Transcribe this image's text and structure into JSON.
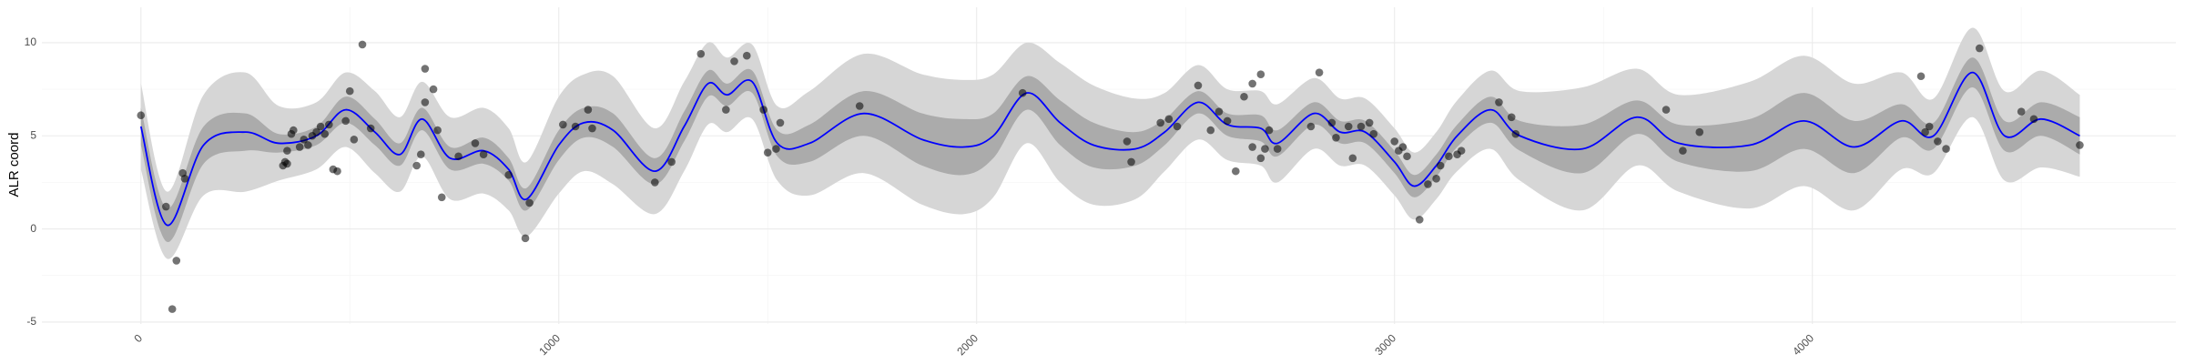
{
  "chart_data": {
    "type": "line",
    "ylabel": "ALR coord",
    "xlim": [
      -237,
      4870
    ],
    "ylim": [
      -5.1,
      11.9
    ],
    "xticks": [
      0,
      1000,
      2000,
      3000,
      4000
    ],
    "yticks": [
      -5,
      0,
      5,
      10
    ],
    "xminor": [
      500,
      1500,
      2500,
      3500,
      4500
    ],
    "yminor": [
      -2.5,
      2.5,
      7.5
    ],
    "grid": true,
    "x": [
      0,
      63,
      150,
      250,
      330,
      420,
      490,
      560,
      620,
      673,
      740,
      820,
      880,
      923,
      1000,
      1060,
      1130,
      1230,
      1300,
      1357,
      1403,
      1463,
      1523,
      1600,
      1730,
      1870,
      1970,
      2040,
      2120,
      2200,
      2280,
      2380,
      2450,
      2530,
      2600,
      2680,
      2720,
      2807,
      2870,
      2930,
      3000,
      3047,
      3100,
      3150,
      3230,
      3300,
      3450,
      3580,
      3680,
      3850,
      3980,
      4100,
      4213,
      4290,
      4383,
      4460,
      4547,
      4640
    ],
    "bands": [
      {
        "color": "#d6d6d6",
        "lower": [
          3.2,
          -1.6,
          1.8,
          2.0,
          2.6,
          3.2,
          4.4,
          3.0,
          2.0,
          3.9,
          1.6,
          1.9,
          1.0,
          -0.4,
          1.9,
          3.1,
          2.4,
          0.8,
          3.1,
          5.6,
          5.2,
          5.9,
          2.6,
          1.8,
          3.0,
          1.3,
          0.8,
          1.7,
          4.6,
          2.5,
          1.3,
          1.6,
          3.1,
          4.8,
          3.7,
          3.4,
          2.5,
          4.3,
          3.4,
          3.4,
          1.8,
          0.5,
          1.6,
          3.1,
          4.3,
          2.6,
          1.0,
          3.4,
          2.0,
          1.1,
          2.3,
          1.0,
          3.2,
          3.0,
          6.0,
          2.6,
          3.3,
          2.8
        ],
        "upper": [
          7.8,
          2.0,
          7.2,
          8.4,
          6.6,
          6.8,
          8.4,
          7.4,
          6.0,
          7.9,
          6.0,
          6.5,
          5.4,
          3.6,
          7.1,
          8.3,
          8.2,
          5.4,
          7.9,
          10.0,
          9.2,
          9.9,
          6.6,
          7.4,
          9.4,
          8.3,
          8.0,
          8.3,
          10.0,
          8.9,
          7.7,
          7.0,
          7.3,
          8.8,
          7.5,
          7.4,
          6.7,
          8.1,
          7.0,
          7.0,
          5.4,
          4.1,
          5.2,
          6.9,
          8.5,
          7.4,
          7.6,
          8.6,
          7.2,
          7.9,
          9.3,
          7.8,
          8.4,
          7.0,
          10.8,
          7.4,
          8.5,
          7.2
        ]
      },
      {
        "color": "#ababab",
        "lower": [
          4.5,
          -0.7,
          3.5,
          4.2,
          4.1,
          4.5,
          5.7,
          4.5,
          3.4,
          5.3,
          3.2,
          3.5,
          2.6,
          1.0,
          3.7,
          4.9,
          4.4,
          2.4,
          4.7,
          7.1,
          6.6,
          7.3,
          3.9,
          3.6,
          5.0,
          3.4,
          2.9,
          3.8,
          6.4,
          4.5,
          3.3,
          3.4,
          4.5,
          6.2,
          5.0,
          4.7,
          3.9,
          5.6,
          4.6,
          4.6,
          3.0,
          1.7,
          2.8,
          4.4,
          5.7,
          4.2,
          3.0,
          5.1,
          3.6,
          3.1,
          4.3,
          3.0,
          4.9,
          4.3,
          7.6,
          4.2,
          5.0,
          4.0
        ],
        "upper": [
          6.5,
          1.1,
          5.5,
          6.2,
          5.1,
          5.5,
          7.1,
          5.9,
          4.6,
          6.5,
          4.4,
          4.9,
          3.8,
          2.2,
          5.3,
          6.5,
          6.2,
          3.8,
          6.3,
          8.5,
          7.8,
          8.5,
          5.3,
          5.6,
          7.4,
          6.2,
          5.9,
          6.2,
          8.2,
          6.9,
          5.7,
          5.2,
          5.9,
          7.4,
          6.2,
          6.1,
          5.3,
          6.8,
          5.8,
          5.8,
          4.2,
          2.9,
          4.0,
          5.6,
          7.1,
          5.8,
          5.6,
          6.9,
          5.6,
          5.9,
          7.3,
          5.8,
          6.7,
          5.7,
          9.2,
          5.8,
          6.8,
          6.0
        ]
      }
    ],
    "series": [
      {
        "color": "#0000ff",
        "values": [
          5.5,
          0.2,
          4.5,
          5.2,
          4.6,
          5.0,
          6.4,
          5.2,
          4.0,
          5.9,
          3.8,
          4.2,
          3.2,
          1.6,
          4.5,
          5.7,
          5.3,
          3.1,
          5.5,
          7.8,
          7.2,
          7.9,
          4.6,
          4.6,
          6.2,
          4.8,
          4.4,
          5.0,
          7.3,
          5.7,
          4.5,
          4.3,
          5.2,
          6.8,
          5.6,
          5.4,
          4.6,
          6.2,
          5.2,
          5.2,
          3.6,
          2.3,
          3.4,
          5.0,
          6.4,
          5.0,
          4.3,
          6.0,
          4.6,
          4.5,
          5.8,
          4.4,
          5.8,
          5.0,
          8.4,
          5.0,
          5.9,
          5.0
        ]
      }
    ],
    "points": {
      "color": "#000000",
      "opacity": 0.55,
      "x": [
        0,
        60,
        75,
        85,
        100,
        105,
        340,
        345,
        350,
        350,
        360,
        365,
        380,
        390,
        400,
        410,
        420,
        430,
        440,
        450,
        460,
        470,
        490,
        500,
        510,
        530,
        550,
        660,
        670,
        680,
        680,
        700,
        710,
        720,
        760,
        800,
        820,
        880,
        920,
        930,
        1010,
        1040,
        1070,
        1080,
        1230,
        1270,
        1340,
        1400,
        1420,
        1450,
        1490,
        1500,
        1520,
        1530,
        1720,
        2110,
        2360,
        2370,
        2440,
        2460,
        2480,
        2530,
        2560,
        2580,
        2600,
        2620,
        2640,
        2660,
        2660,
        2680,
        2680,
        2690,
        2700,
        2720,
        2800,
        2820,
        2850,
        2860,
        2890,
        2900,
        2920,
        2940,
        2950,
        3000,
        3010,
        3020,
        3030,
        3060,
        3080,
        3100,
        3110,
        3130,
        3150,
        3160,
        3250,
        3280,
        3290,
        3650,
        3690,
        3730,
        4260,
        4270,
        4280,
        4300,
        4320,
        4400,
        4500,
        4530,
        4640
      ],
      "y": [
        6.1,
        1.2,
        -4.3,
        -1.7,
        3.0,
        2.7,
        3.4,
        3.6,
        3.5,
        4.2,
        5.1,
        5.3,
        4.4,
        4.8,
        4.5,
        5.0,
        5.2,
        5.5,
        5.1,
        5.6,
        3.2,
        3.1,
        5.8,
        7.4,
        4.8,
        9.9,
        5.4,
        3.4,
        4.0,
        6.8,
        8.6,
        7.5,
        5.3,
        1.7,
        3.9,
        4.6,
        4.0,
        2.9,
        -0.5,
        1.4,
        5.6,
        5.5,
        6.4,
        5.4,
        2.5,
        3.6,
        9.4,
        6.4,
        9.0,
        9.3,
        6.4,
        4.1,
        4.3,
        5.7,
        6.6,
        7.3,
        4.7,
        3.6,
        5.7,
        5.9,
        5.5,
        7.7,
        5.3,
        6.3,
        5.8,
        3.1,
        7.1,
        7.8,
        4.4,
        8.3,
        3.8,
        4.3,
        5.3,
        4.3,
        5.5,
        8.4,
        5.7,
        4.9,
        5.5,
        3.8,
        5.5,
        5.7,
        5.1,
        4.7,
        4.2,
        4.4,
        3.9,
        0.5,
        2.4,
        2.7,
        3.4,
        3.9,
        4.0,
        4.2,
        6.8,
        6.0,
        5.1,
        6.4,
        4.2,
        5.2,
        8.2,
        5.2,
        5.5,
        4.7,
        4.3,
        9.7,
        6.3,
        5.9,
        4.5
      ]
    }
  }
}
